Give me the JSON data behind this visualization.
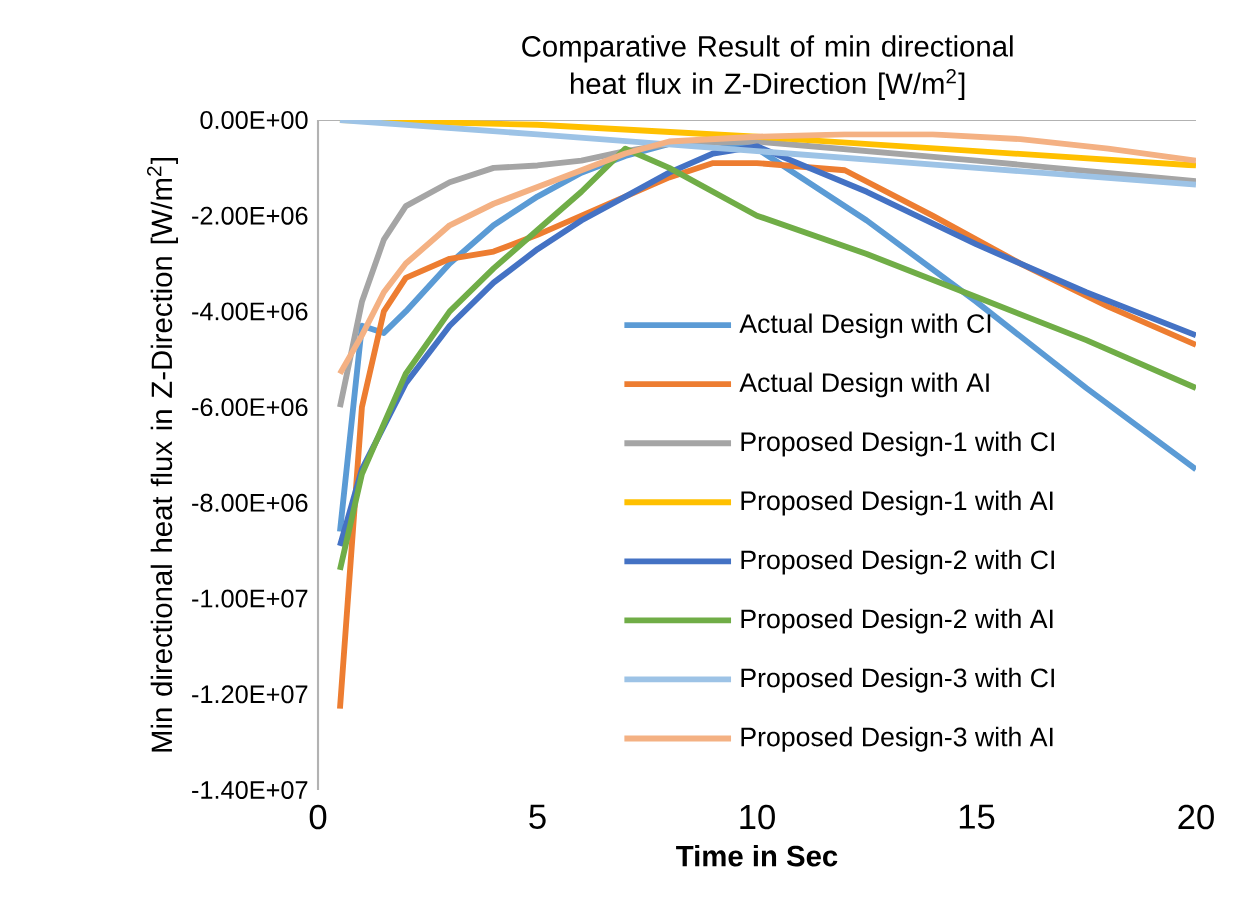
{
  "chart_data": {
    "type": "line",
    "title": "Comparative Result of min directional heat flux in Z-Direction [W/m$^{2}$]",
    "xlabel": "Time in Sec",
    "ylabel": "Min directional heat flux in Z-Direction [W/m$^{2}$]",
    "xlim": [
      0,
      20
    ],
    "xticks": [
      0,
      5,
      10,
      15,
      20
    ],
    "ylim": [
      -14000000,
      0
    ],
    "yticks": [
      {
        "value": 0,
        "label": "0.00E+00"
      },
      {
        "value": -2000000,
        "label": "-2.00E+06"
      },
      {
        "value": -4000000,
        "label": "-4.00E+06"
      },
      {
        "value": -6000000,
        "label": "-6.00E+06"
      },
      {
        "value": -8000000,
        "label": "-8.00E+06"
      },
      {
        "value": -10000000,
        "label": "-1.00E+07"
      },
      {
        "value": -12000000,
        "label": "-1.20E+07"
      },
      {
        "value": -14000000,
        "label": "-1.40E+07"
      }
    ],
    "grid": false,
    "legend": "right",
    "marker": "none",
    "line_style": "solid",
    "series": [
      {
        "name": "Actual Design with CI",
        "color": "#5b9bd5",
        "x": [
          0.5,
          1,
          1.5,
          2,
          3,
          4,
          5,
          6,
          7,
          8,
          9,
          10,
          12.5,
          15,
          17.5,
          20
        ],
        "values": [
          -8600000,
          -4300000,
          -4450000,
          -4000000,
          -3000000,
          -2200000,
          -1600000,
          -1100000,
          -750000,
          -500000,
          -450000,
          -600000,
          -2100000,
          -3800000,
          -5600000,
          -7300000
        ]
      },
      {
        "name": "Actual Design with AI",
        "color": "#ed7d31",
        "x": [
          0.5,
          1,
          1.5,
          2,
          3,
          4,
          5,
          6,
          7,
          8,
          9,
          10,
          12,
          14,
          16,
          18,
          20
        ],
        "values": [
          -12300000,
          -6000000,
          -4000000,
          -3300000,
          -2900000,
          -2750000,
          -2400000,
          -2000000,
          -1600000,
          -1200000,
          -900000,
          -900000,
          -1050000,
          -2000000,
          -3000000,
          -3900000,
          -4700000
        ]
      },
      {
        "name": "Proposed Design-1 with CI",
        "color": "#a5a5a5",
        "x": [
          0.5,
          1,
          1.5,
          2,
          3,
          4,
          5,
          6,
          7,
          8,
          10,
          15,
          20
        ],
        "values": [
          -6000000,
          -3800000,
          -2500000,
          -1800000,
          -1300000,
          -1000000,
          -950000,
          -850000,
          -650000,
          -500000,
          -450000,
          -850000,
          -1280000
        ]
      },
      {
        "name": "Proposed Design-1 with AI",
        "color": "#ffc000",
        "x": [
          0.5,
          5,
          10,
          15,
          20
        ],
        "values": [
          0,
          -100000,
          -350000,
          -650000,
          -950000
        ]
      },
      {
        "name": "Proposed Design-2 with CI",
        "color": "#4472c4",
        "x": [
          0.5,
          1,
          2,
          3,
          4,
          5,
          6,
          7,
          8,
          9,
          10,
          12.5,
          15,
          17.5,
          20
        ],
        "values": [
          -8900000,
          -7300000,
          -5500000,
          -4300000,
          -3400000,
          -2700000,
          -2100000,
          -1600000,
          -1100000,
          -700000,
          -550000,
          -1500000,
          -2600000,
          -3600000,
          -4500000
        ]
      },
      {
        "name": "Proposed Design-2 with AI",
        "color": "#70ad47",
        "x": [
          0.5,
          1,
          2,
          3,
          4,
          5,
          6,
          7,
          8,
          10,
          12.5,
          15,
          17.5,
          20
        ],
        "values": [
          -9400000,
          -7400000,
          -5300000,
          -4000000,
          -3100000,
          -2300000,
          -1500000,
          -600000,
          -1000000,
          -2000000,
          -2800000,
          -3700000,
          -4600000,
          -5600000
        ]
      },
      {
        "name": "Proposed Design-3 with CI",
        "color": "#9dc3e6",
        "x": [
          0.5,
          5,
          10,
          15,
          20
        ],
        "values": [
          0,
          -300000,
          -650000,
          -1000000,
          -1350000
        ]
      },
      {
        "name": "Proposed Design-3 with AI",
        "color": "#f4b183",
        "x": [
          0.5,
          1,
          1.5,
          2,
          3,
          4,
          5,
          6,
          7,
          8,
          10,
          12,
          14,
          16,
          18,
          20
        ],
        "values": [
          -5300000,
          -4500000,
          -3600000,
          -3000000,
          -2200000,
          -1750000,
          -1400000,
          -1050000,
          -700000,
          -450000,
          -350000,
          -300000,
          -300000,
          -400000,
          -600000,
          -850000
        ]
      }
    ]
  }
}
